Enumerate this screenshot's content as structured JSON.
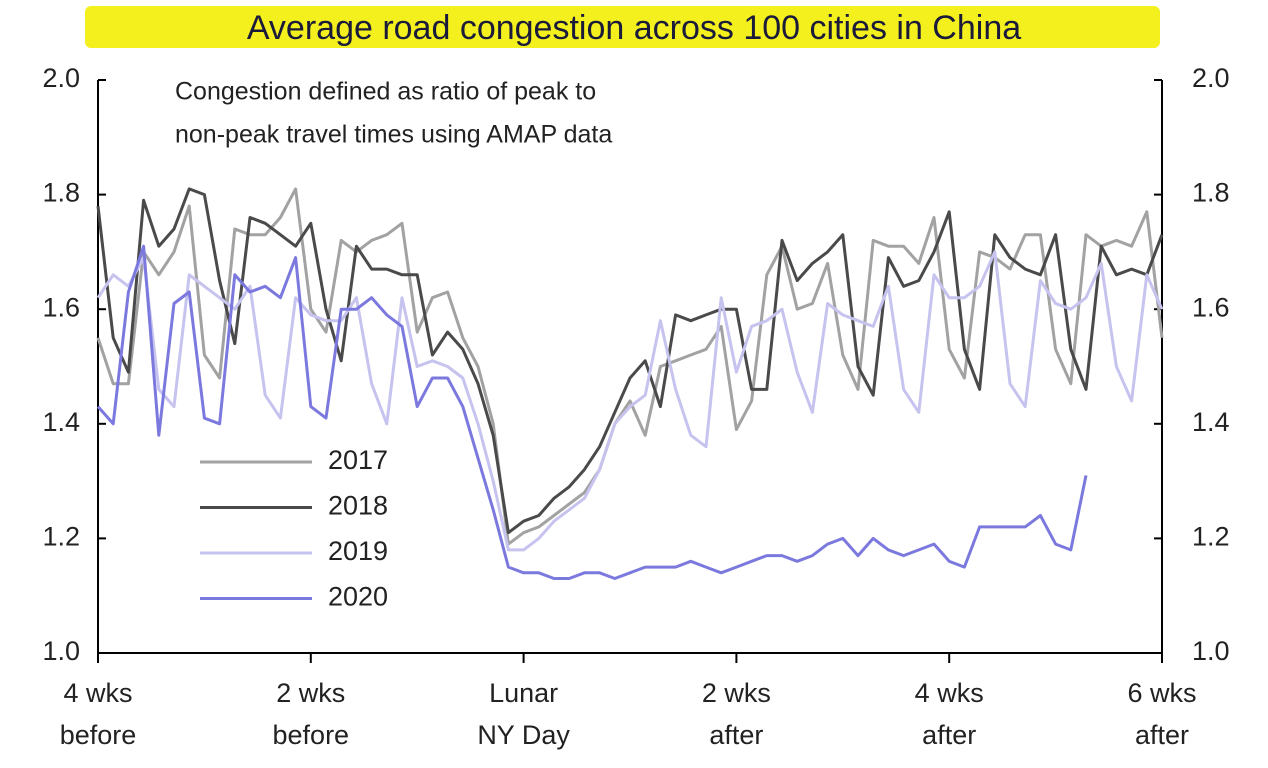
{
  "chart_data": {
    "type": "line",
    "title": "Average road congestion across 100 cities in China",
    "annotation_lines": [
      "Congestion  defined  as ratio of peak to",
      "non-peak  travel times using  AMAP data"
    ],
    "x": [
      -28,
      -27,
      -26,
      -25,
      -24,
      -23,
      -22,
      -21,
      -20,
      -19,
      -18,
      -17,
      -16,
      -15,
      -14,
      -13,
      -12,
      -11,
      -10,
      -9,
      -8,
      -7,
      -6,
      -5,
      -4,
      -3,
      -2,
      -1,
      0,
      1,
      2,
      3,
      4,
      5,
      6,
      7,
      8,
      9,
      10,
      11,
      12,
      13,
      14,
      15,
      16,
      17,
      18,
      19,
      20,
      21,
      22,
      23,
      24,
      25,
      26,
      27,
      28,
      29,
      30,
      31,
      32,
      33,
      34,
      35,
      36,
      37,
      38,
      39,
      40,
      41,
      42
    ],
    "xlim": [
      -28,
      42
    ],
    "xticks": [
      {
        "value": -28,
        "label": "4 wks\nbefore"
      },
      {
        "value": -14,
        "label": "2 wks\nbefore"
      },
      {
        "value": 0,
        "label": "Lunar\nNY Day"
      },
      {
        "value": 14,
        "label": "2 wks\nafter"
      },
      {
        "value": 28,
        "label": "4 wks\nafter"
      },
      {
        "value": 42,
        "label": "6 wks\nafter"
      }
    ],
    "ylim": [
      1.0,
      2.0
    ],
    "yticks": [
      {
        "value": 1.0,
        "label": "1.0"
      },
      1.2,
      1.4,
      1.6,
      1.8,
      {
        "value": 2.0,
        "label": "2.0"
      }
    ],
    "y2lim": [
      1.0,
      2.0
    ],
    "y2ticks": [
      {
        "value": 1.0,
        "label": "1.0"
      },
      1.2,
      1.4,
      1.6,
      1.8,
      {
        "value": 2.0,
        "label": "2.0"
      }
    ],
    "grid": false,
    "legend": "lower left",
    "series": [
      {
        "name": "2017",
        "color": "#a2a2a2",
        "values": [
          1.55,
          1.47,
          1.47,
          1.7,
          1.66,
          1.7,
          1.78,
          1.52,
          1.48,
          1.74,
          1.73,
          1.73,
          1.76,
          1.81,
          1.6,
          1.56,
          1.72,
          1.7,
          1.72,
          1.73,
          1.75,
          1.56,
          1.62,
          1.63,
          1.55,
          1.5,
          1.4,
          1.19,
          1.21,
          1.22,
          1.24,
          1.26,
          1.28,
          1.32,
          1.4,
          1.44,
          1.38,
          1.5,
          1.51,
          1.52,
          1.53,
          1.57,
          1.39,
          1.44,
          1.66,
          1.71,
          1.6,
          1.61,
          1.68,
          1.52,
          1.46,
          1.72,
          1.71,
          1.71,
          1.68,
          1.76,
          1.53,
          1.48,
          1.7,
          1.69,
          1.67,
          1.73,
          1.73,
          1.53,
          1.47,
          1.73,
          1.71,
          1.72,
          1.71,
          1.77,
          1.55
        ]
      },
      {
        "name": "2018",
        "color": "#4a4a4a",
        "values": [
          1.78,
          1.55,
          1.49,
          1.79,
          1.71,
          1.74,
          1.81,
          1.8,
          1.65,
          1.54,
          1.76,
          1.75,
          1.73,
          1.71,
          1.75,
          1.6,
          1.51,
          1.71,
          1.67,
          1.67,
          1.66,
          1.66,
          1.52,
          1.56,
          1.53,
          1.47,
          1.38,
          1.21,
          1.23,
          1.24,
          1.27,
          1.29,
          1.32,
          1.36,
          1.42,
          1.48,
          1.51,
          1.43,
          1.59,
          1.58,
          1.59,
          1.6,
          1.6,
          1.46,
          1.46,
          1.72,
          1.65,
          1.68,
          1.7,
          1.73,
          1.5,
          1.45,
          1.69,
          1.64,
          1.65,
          1.7,
          1.77,
          1.53,
          1.46,
          1.73,
          1.69,
          1.67,
          1.66,
          1.73,
          1.53,
          1.46,
          1.71,
          1.66,
          1.67,
          1.66,
          1.73
        ]
      },
      {
        "name": "2019",
        "color": "#c6c3ef",
        "values": [
          1.62,
          1.66,
          1.64,
          1.69,
          1.46,
          1.43,
          1.66,
          1.64,
          1.62,
          1.6,
          1.64,
          1.45,
          1.41,
          1.62,
          1.59,
          1.58,
          1.58,
          1.62,
          1.47,
          1.4,
          1.62,
          1.5,
          1.51,
          1.5,
          1.48,
          1.4,
          1.3,
          1.18,
          1.18,
          1.2,
          1.23,
          1.25,
          1.27,
          1.32,
          1.4,
          1.43,
          1.45,
          1.58,
          1.46,
          1.38,
          1.36,
          1.62,
          1.49,
          1.57,
          1.58,
          1.6,
          1.49,
          1.42,
          1.61,
          1.59,
          1.58,
          1.57,
          1.64,
          1.46,
          1.42,
          1.66,
          1.62,
          1.62,
          1.64,
          1.7,
          1.47,
          1.43,
          1.65,
          1.61,
          1.6,
          1.62,
          1.68,
          1.5,
          1.44,
          1.66,
          1.6
        ]
      },
      {
        "name": "2020",
        "color": "#7c79de",
        "values": [
          1.43,
          1.4,
          1.63,
          1.71,
          1.38,
          1.61,
          1.63,
          1.41,
          1.4,
          1.66,
          1.63,
          1.64,
          1.62,
          1.69,
          1.43,
          1.41,
          1.6,
          1.6,
          1.62,
          1.59,
          1.57,
          1.43,
          1.48,
          1.48,
          1.43,
          1.34,
          1.25,
          1.15,
          1.14,
          1.14,
          1.13,
          1.13,
          1.14,
          1.14,
          1.13,
          1.14,
          1.15,
          1.15,
          1.15,
          1.16,
          1.15,
          1.14,
          1.15,
          1.16,
          1.17,
          1.17,
          1.16,
          1.17,
          1.19,
          1.2,
          1.17,
          1.2,
          1.18,
          1.17,
          1.18,
          1.19,
          1.16,
          1.15,
          1.22,
          1.22,
          1.22,
          1.22,
          1.24,
          1.19,
          1.18,
          1.31,
          null,
          null,
          null,
          null,
          null
        ]
      }
    ]
  }
}
